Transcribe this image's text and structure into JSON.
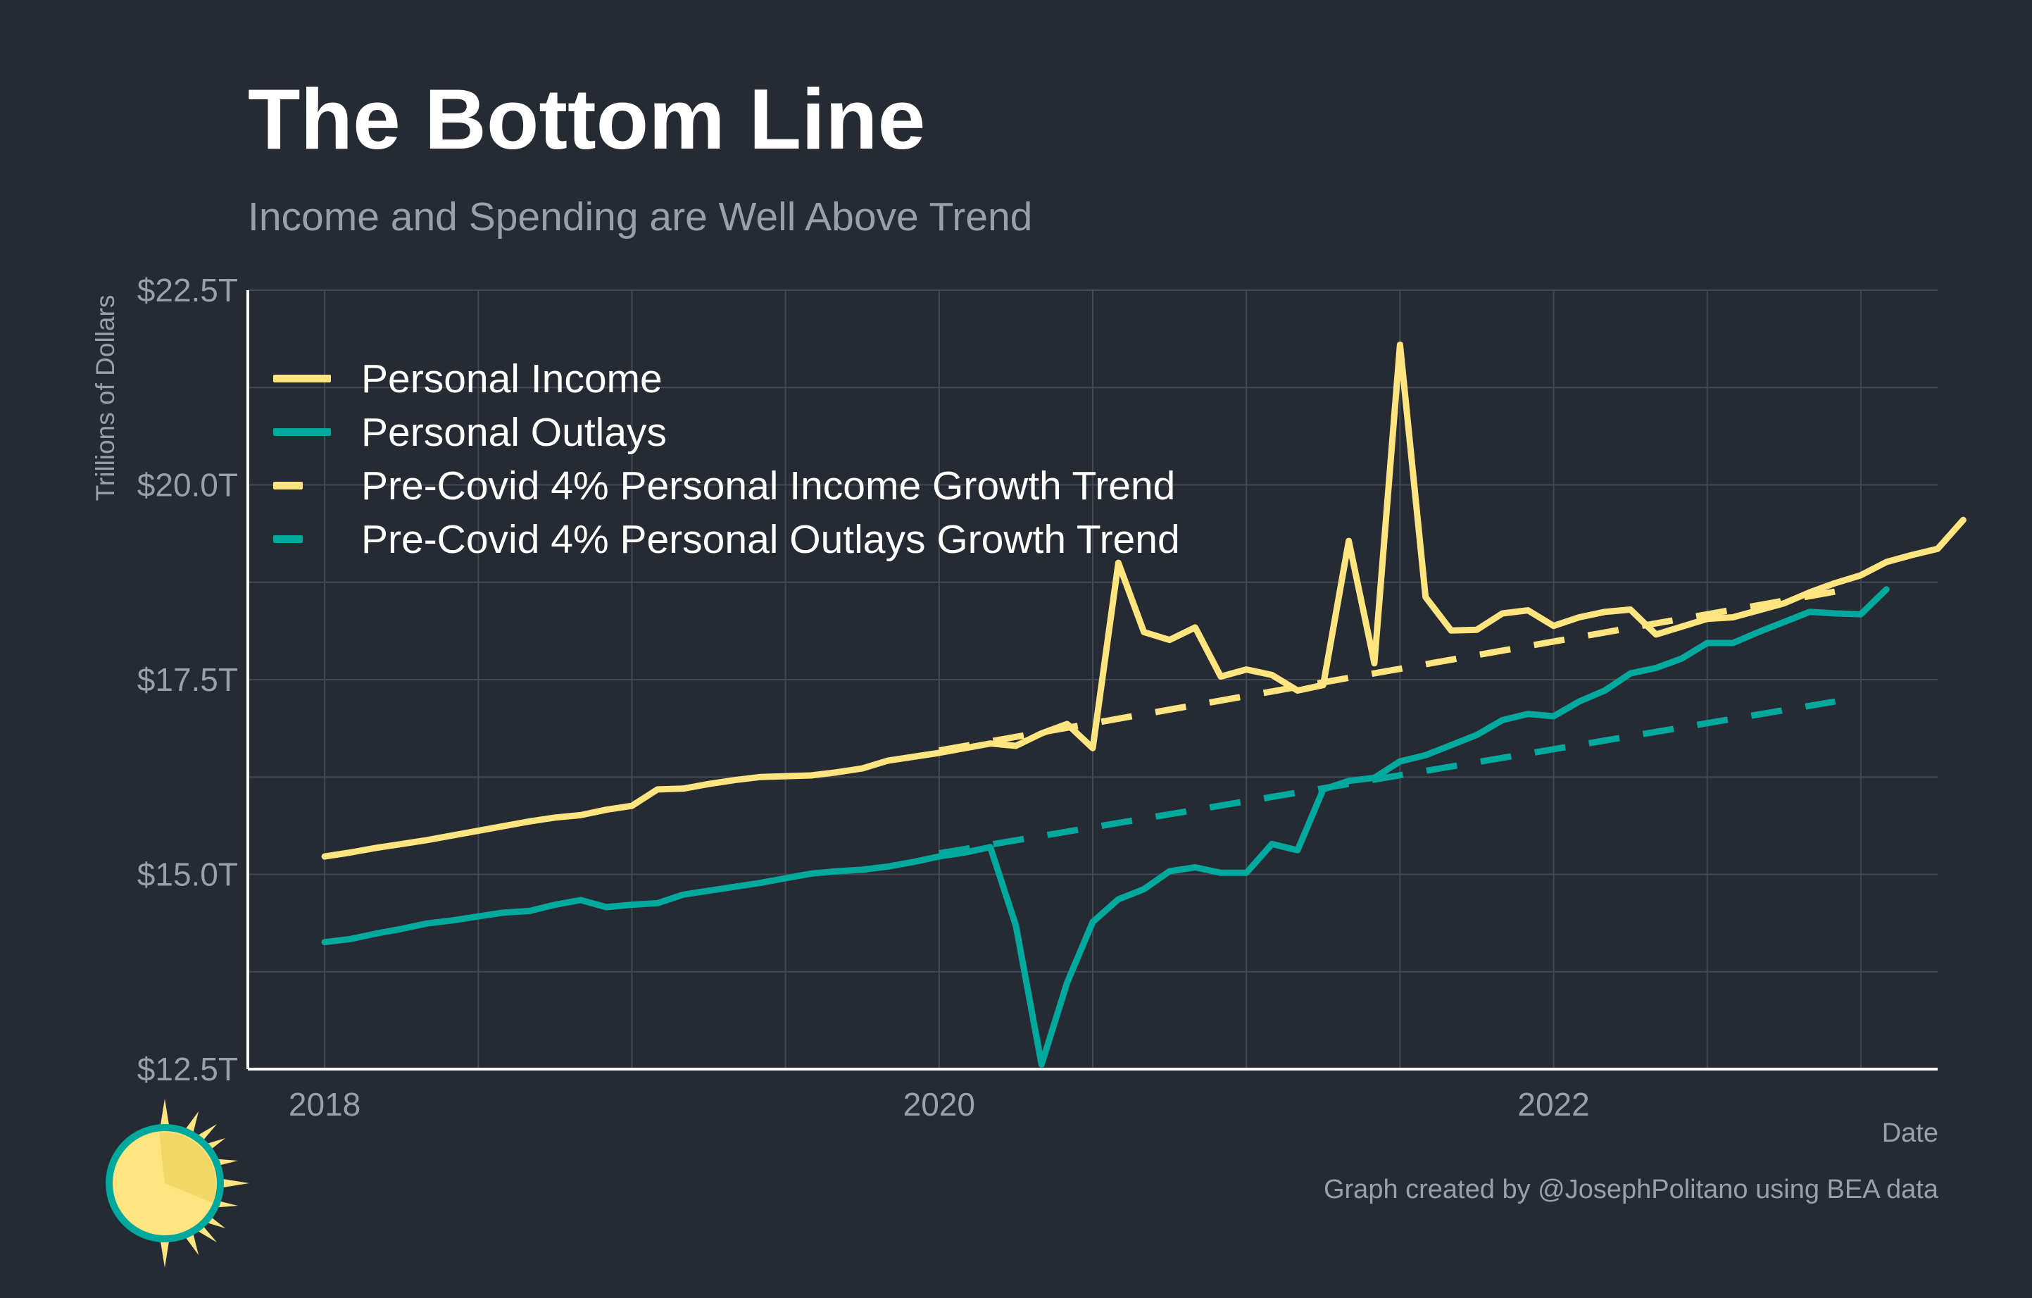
{
  "header": {
    "title": "The Bottom Line",
    "subtitle": "Income and Spending are Well Above Trend"
  },
  "footer": {
    "caption": "Graph created by @JosephPolitano using BEA data"
  },
  "colors": {
    "background": "#252a33",
    "income": "#ffe57f",
    "outlays": "#00a99d",
    "grid": "#434852",
    "axis": "#ffffff",
    "muted_text": "#9ba0a8"
  },
  "chart_data": {
    "type": "line",
    "title": "The Bottom Line",
    "subtitle": "Income and Spending are Well Above Trend",
    "xlabel": "Date",
    "ylabel": "Trillions of Dollars",
    "x_ticks": [
      "2018",
      "2020",
      "2022"
    ],
    "y_ticks": [
      "$12.5T",
      "$15.0T",
      "$17.5T",
      "$20.0T",
      "$22.5T"
    ],
    "ylim": [
      12.5,
      22.5
    ],
    "xlim": [
      "2017-10",
      "2023-04"
    ],
    "grid": true,
    "legend_position": "top-left",
    "series": [
      {
        "name": "Personal Income",
        "style": "solid",
        "color": "#ffe57f",
        "start": "2018-01",
        "frequency": "monthly",
        "values": [
          15.23,
          15.28,
          15.34,
          15.39,
          15.44,
          15.5,
          15.56,
          15.62,
          15.68,
          15.73,
          15.76,
          15.83,
          15.88,
          16.09,
          16.1,
          16.16,
          16.21,
          16.25,
          16.26,
          16.27,
          16.31,
          16.36,
          16.46,
          16.51,
          16.56,
          16.62,
          16.68,
          16.65,
          16.81,
          16.93,
          16.62,
          19.0,
          18.11,
          18.01,
          18.17,
          17.54,
          17.63,
          17.56,
          17.36,
          17.43,
          19.28,
          17.71,
          21.8,
          18.56,
          18.13,
          18.14,
          18.35,
          18.39,
          18.19,
          18.3,
          18.37,
          18.4,
          18.08,
          18.18,
          18.28,
          18.3,
          18.39,
          18.48,
          18.62,
          18.74,
          18.84,
          19.01,
          19.1,
          19.18,
          19.55
        ]
      },
      {
        "name": "Personal Outlays",
        "style": "solid",
        "color": "#00a99d",
        "start": "2018-01",
        "frequency": "monthly",
        "values": [
          14.13,
          14.17,
          14.24,
          14.3,
          14.37,
          14.41,
          14.46,
          14.51,
          14.53,
          14.61,
          14.67,
          14.58,
          14.61,
          14.63,
          14.74,
          14.79,
          14.84,
          14.89,
          14.95,
          15.01,
          15.04,
          15.06,
          15.1,
          15.16,
          15.23,
          15.28,
          15.35,
          14.34,
          12.56,
          13.61,
          14.39,
          14.68,
          14.81,
          15.04,
          15.09,
          15.02,
          15.02,
          15.39,
          15.31,
          16.09,
          16.2,
          16.24,
          16.45,
          16.53,
          16.66,
          16.79,
          16.98,
          17.06,
          17.03,
          17.22,
          17.36,
          17.58,
          17.65,
          17.77,
          17.97,
          17.97,
          18.11,
          18.24,
          18.37,
          18.35,
          18.34,
          18.66
        ]
      },
      {
        "name": "Pre-Covid 4% Personal Income Growth Trend",
        "style": "dashed",
        "color": "#ffe57f",
        "points": [
          [
            "2020-01",
            16.59
          ],
          [
            "2022-12",
            18.63
          ]
        ]
      },
      {
        "name": "Pre-Covid 4% Personal Outlays Growth Trend",
        "style": "dashed",
        "color": "#00a99d",
        "points": [
          [
            "2020-01",
            15.27
          ],
          [
            "2022-12",
            17.22
          ]
        ]
      }
    ]
  }
}
